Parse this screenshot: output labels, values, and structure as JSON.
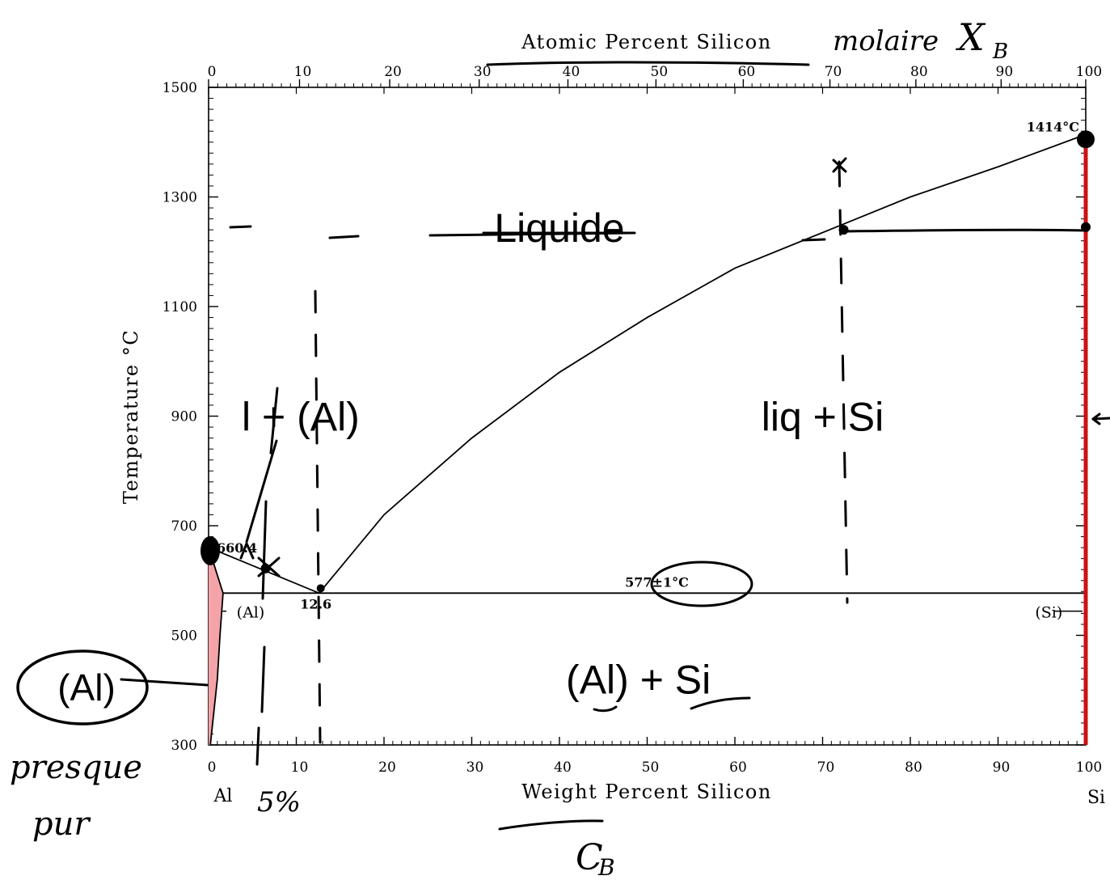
{
  "chart_data": {
    "type": "line",
    "title": "",
    "xlabel_bottom": "Weight Percent Silicon",
    "xlabel_top": "Atomic Percent Silicon",
    "ylabel": "Temperature °C",
    "xlim": [
      0,
      100
    ],
    "ylim": [
      300,
      1500
    ],
    "x_ticks": [
      0,
      10,
      20,
      30,
      40,
      50,
      60,
      70,
      80,
      90,
      100
    ],
    "top_ticks": [
      0,
      10,
      20,
      30,
      40,
      50,
      60,
      70,
      80,
      90,
      100
    ],
    "y_ticks": [
      300,
      500,
      700,
      900,
      1100,
      1300,
      1500
    ],
    "end_labels": {
      "left": "Al",
      "right": "Si"
    },
    "series": [
      {
        "name": "liquidus (Al)",
        "x": [
          0,
          12.6
        ],
        "y": [
          660.4,
          577
        ]
      },
      {
        "name": "liquidus (Si)",
        "x": [
          12.6,
          20,
          30,
          40,
          50,
          60,
          70,
          80,
          90,
          100
        ],
        "y": [
          577,
          720,
          860,
          980,
          1080,
          1170,
          1235,
          1300,
          1355,
          1414
        ]
      },
      {
        "name": "eutectic",
        "x": [
          1.65,
          100
        ],
        "y": [
          577,
          577
        ]
      },
      {
        "name": "solidus (Al)",
        "x": [
          0,
          1.65
        ],
        "y": [
          660.4,
          577
        ]
      },
      {
        "name": "solvus (Al)",
        "x": [
          1.65,
          1.3,
          1.0,
          0.6,
          0.2
        ],
        "y": [
          577,
          500,
          420,
          360,
          300
        ]
      },
      {
        "name": "Si",
        "x": [
          100,
          100
        ],
        "y": [
          300,
          1414
        ]
      }
    ],
    "special_points": [
      {
        "label": "660.4",
        "x": 0,
        "y": 660.4
      },
      {
        "label": "12.6",
        "x": 12.6,
        "y": 577
      },
      {
        "label": "577±1°C",
        "x": 50,
        "y": 577
      },
      {
        "label": "1414°C",
        "x": 100,
        "y": 1414
      }
    ],
    "phase_labels": [
      {
        "text": "Liquide",
        "x": 40,
        "y": 1245
      },
      {
        "text": "l + (Al)",
        "x": 10.5,
        "y": 900
      },
      {
        "text": "liq + Si",
        "x": 70,
        "y": 900
      },
      {
        "text": "(Al) + Si",
        "x": 49,
        "y": 420
      }
    ],
    "small_phase_labels": [
      {
        "text": "(Al)",
        "x": 3.5,
        "y": 550
      },
      {
        "text": "(Si)",
        "x": 94.5,
        "y": 550
      }
    ]
  },
  "annotations": {
    "al_circle_label": "(Al)",
    "handwriting_top": "molaire",
    "handwriting_xb": "X",
    "handwriting_xb_sub": "B",
    "handwriting_cb": "C",
    "handwriting_cb_sub": "B",
    "handwriting_presque": "presque",
    "handwriting_pur": "pur",
    "handwriting_percent": "5%",
    "colors": {
      "accent_red": "#cc1111",
      "pink_fill": "#f4a3a8",
      "ink": "#000000"
    }
  }
}
